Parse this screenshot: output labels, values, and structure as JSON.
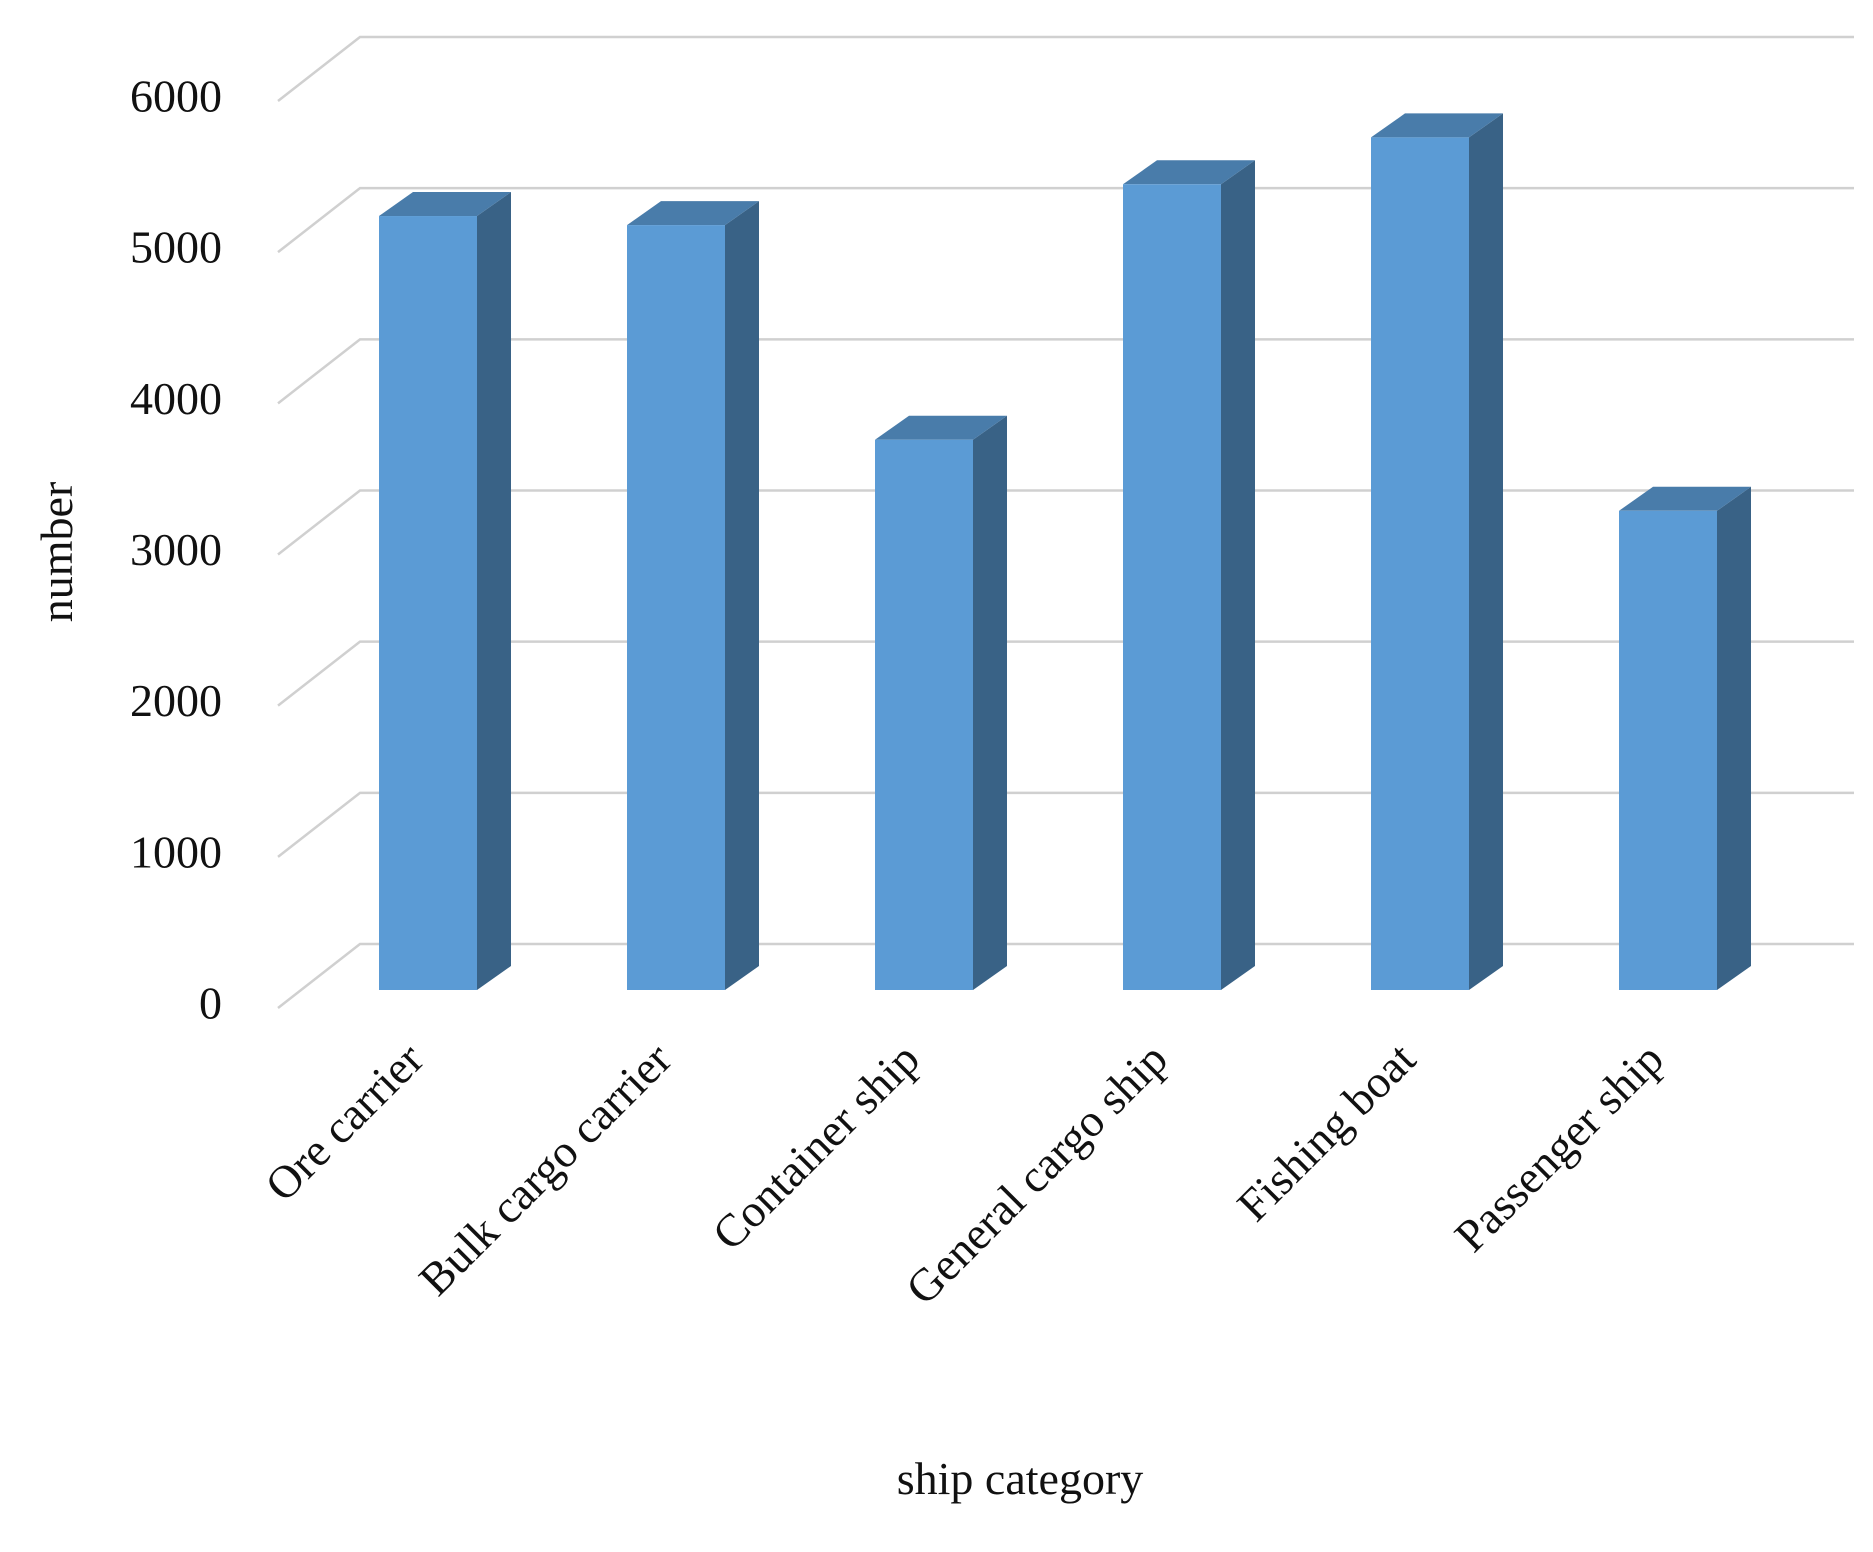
{
  "chart_data": {
    "type": "bar3d",
    "x_label": "ship category",
    "y_label": "number",
    "categories": [
      "Ore carrier",
      "Bulk cargo carrier",
      "Container ship",
      "General cargo ship",
      "Fishing boat",
      "Passenger ship"
    ],
    "values": [
      5120,
      5060,
      3640,
      5330,
      5640,
      3170
    ],
    "color": "#5b9bd5",
    "ylim": [
      0,
      6000
    ],
    "yticks": [
      0,
      1000,
      2000,
      3000,
      4000,
      5000,
      6000
    ],
    "grid": true
  }
}
